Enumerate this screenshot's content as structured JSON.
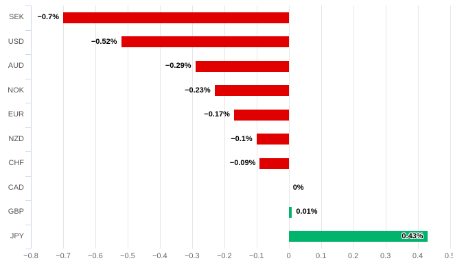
{
  "chart_data": {
    "type": "bar",
    "orientation": "horizontal",
    "title": "",
    "xlabel": "",
    "ylabel": "",
    "categories": [
      "SEK",
      "USD",
      "AUD",
      "NOK",
      "EUR",
      "NZD",
      "CHF",
      "CAD",
      "GBP",
      "JPY"
    ],
    "values": [
      -0.7,
      -0.52,
      -0.29,
      -0.23,
      -0.17,
      -0.1,
      -0.09,
      0,
      0.01,
      0.43
    ],
    "data_labels": [
      "−0.7%",
      "−0.52%",
      "−0.29%",
      "−0.23%",
      "−0.17%",
      "−0.1%",
      "−0.09%",
      "0%",
      "0.01%",
      "0.43%"
    ],
    "xlim": [
      -0.8,
      0.5
    ],
    "x_ticks": [
      {
        "value": -0.8,
        "label": "−0.8"
      },
      {
        "value": -0.7,
        "label": "−0.7"
      },
      {
        "value": -0.6,
        "label": "−0.6"
      },
      {
        "value": -0.5,
        "label": "−0.5"
      },
      {
        "value": -0.4,
        "label": "−0.4"
      },
      {
        "value": -0.3,
        "label": "−0.3"
      },
      {
        "value": -0.2,
        "label": "−0.2"
      },
      {
        "value": -0.1,
        "label": "−0.1"
      },
      {
        "value": 0,
        "label": "0"
      },
      {
        "value": 0.1,
        "label": "0.1"
      },
      {
        "value": 0.2,
        "label": "0.2"
      },
      {
        "value": 0.3,
        "label": "0.3"
      },
      {
        "value": 0.4,
        "label": "0.4"
      },
      {
        "value": 0.5,
        "label": "0.5"
      }
    ],
    "grid": true,
    "legend": false,
    "colors": {
      "negative_bar": "#e00000",
      "positive_bar": "#00b46e",
      "axis_line": "#ccd6eb",
      "gridline": "#e6e6e6",
      "tick_label_text": "#666666",
      "category_label_text": "#555555",
      "data_label_text": "#000000"
    }
  }
}
